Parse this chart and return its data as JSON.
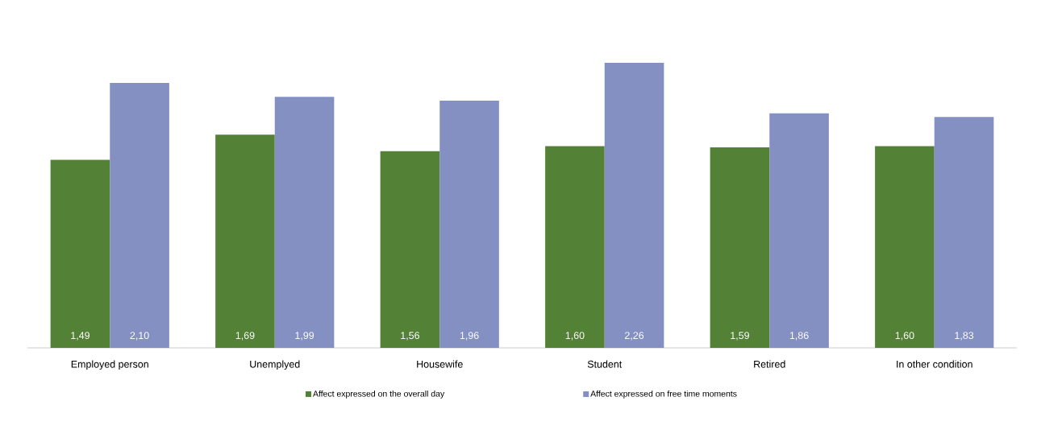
{
  "chart_data": {
    "type": "bar",
    "categories": [
      "Employed person",
      "Unemplyed",
      "Housewife",
      "Student",
      "Retired",
      "In other condition"
    ],
    "series": [
      {
        "name": "Affect expressed on the overall day",
        "color": "#538135",
        "values": [
          1.49,
          1.69,
          1.56,
          1.6,
          1.59,
          1.6
        ],
        "value_labels": [
          "1,49",
          "1,69",
          "1,56",
          "1,60",
          "1,59",
          "1,60"
        ]
      },
      {
        "name": "Affect expressed on free time moments",
        "color": "#8490c2",
        "values": [
          2.1,
          1.99,
          1.96,
          2.26,
          1.86,
          1.83
        ],
        "value_labels": [
          "2,10",
          "1,99",
          "1,96",
          "2,26",
          "1,86",
          "1,83"
        ]
      }
    ],
    "legend": "bottom"
  }
}
